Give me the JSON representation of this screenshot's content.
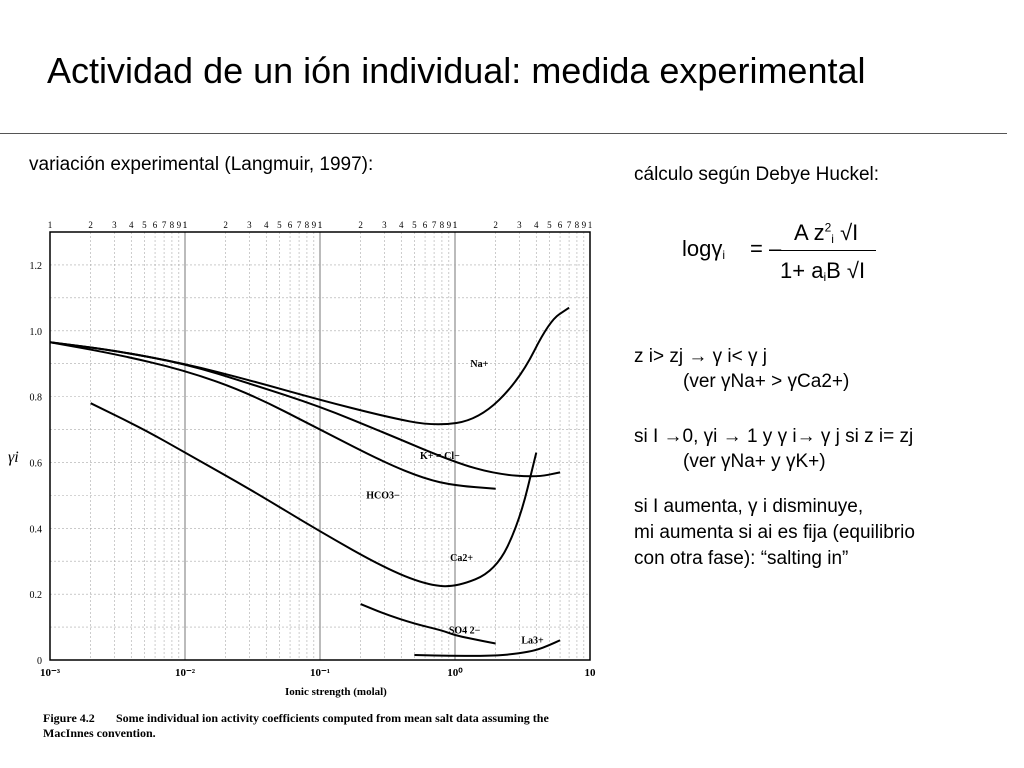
{
  "title": "Actividad de un ión individual: medida experimental",
  "left_caption": "variación experimental (Langmuir, 1997):",
  "right_caption": "cálculo según Debye Huckel:",
  "formula": {
    "lhs": "logγ",
    "lhs_sub": "i",
    "equals": "= –",
    "numerator": "A z",
    "num_sup": "2",
    "num_sub": "i",
    "num_sqrt": "√I",
    "denominator": "1+ a",
    "den_sub": "i",
    "den_rest": "B √I"
  },
  "notes": {
    "line1": "z i> zj → γ i< γ j",
    "line2": "(ver γNa+ > γCa2+)",
    "line3": "si I →0, γi → 1 y γ i→ γ j si z i= zj",
    "line4": "(ver γNa+ y γK+)",
    "line5": "si I aumenta, γ i disminuye,",
    "line6": "mi aumenta si ai es fija (equilibrio",
    "line7": "con otra fase): “salting in”"
  },
  "figure": {
    "caption_bold": "Figure 4.2",
    "caption_text": "Some individual ion activity coefficients computed from mean salt data assuming the",
    "caption_text2": "MacInnes convention."
  },
  "chart_data": {
    "type": "line",
    "x_scale": "log",
    "xlabel": "Ionic strength (molal)",
    "ylabel": "γi",
    "xlim": [
      0.001,
      10
    ],
    "ylim": [
      0,
      1.3
    ],
    "x_tick_labels": [
      "10⁻³",
      "10⁻²",
      "10⁻¹",
      "10⁰",
      "10"
    ],
    "y_tick_labels": [
      "0",
      "0.2",
      "0.4",
      "0.6",
      "0.8",
      "1.0",
      "1.2"
    ],
    "top_minor_labels": [
      "1",
      "2",
      "3",
      "4",
      "5",
      "6",
      "7",
      "8",
      "9",
      "1"
    ],
    "series": [
      {
        "name": "Na+",
        "x": [
          0.001,
          0.003,
          0.01,
          0.03,
          0.1,
          0.3,
          0.7,
          1.5,
          3,
          5,
          7
        ],
        "y": [
          0.965,
          0.94,
          0.9,
          0.85,
          0.79,
          0.74,
          0.71,
          0.73,
          0.85,
          1.03,
          1.07
        ]
      },
      {
        "name": "K+ = Cl−",
        "x": [
          0.001,
          0.003,
          0.01,
          0.03,
          0.1,
          0.3,
          1,
          2,
          4,
          6
        ],
        "y": [
          0.965,
          0.94,
          0.9,
          0.84,
          0.77,
          0.69,
          0.6,
          0.565,
          0.555,
          0.57
        ]
      },
      {
        "name": "HCO3−",
        "x": [
          0.001,
          0.003,
          0.01,
          0.03,
          0.1,
          0.3,
          0.6,
          1,
          2
        ],
        "y": [
          0.965,
          0.93,
          0.88,
          0.81,
          0.7,
          0.6,
          0.55,
          0.53,
          0.52
        ]
      },
      {
        "name": "Ca2+",
        "x": [
          0.002,
          0.005,
          0.01,
          0.03,
          0.1,
          0.3,
          0.6,
          1,
          2,
          3,
          4
        ],
        "y": [
          0.78,
          0.7,
          0.63,
          0.52,
          0.39,
          0.28,
          0.23,
          0.22,
          0.27,
          0.42,
          0.63
        ]
      },
      {
        "name": "SO4 2−",
        "x": [
          0.2,
          0.3,
          0.5,
          0.8,
          1,
          1.5,
          2
        ],
        "y": [
          0.17,
          0.14,
          0.11,
          0.09,
          0.075,
          0.06,
          0.05
        ]
      },
      {
        "name": "La3+",
        "x": [
          0.5,
          1,
          2,
          3,
          4,
          5,
          6
        ],
        "y": [
          0.015,
          0.012,
          0.013,
          0.02,
          0.03,
          0.045,
          0.06
        ]
      }
    ]
  }
}
